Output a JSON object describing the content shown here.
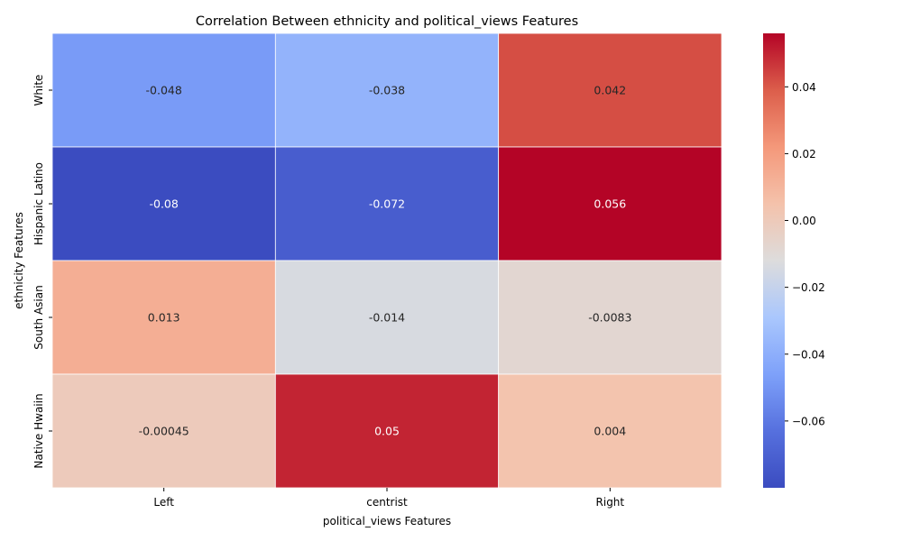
{
  "chart_data": {
    "type": "heatmap",
    "title": "Correlation Between ethnicity and political_views Features",
    "xlabel": "political_views Features",
    "ylabel": "ethnicity Features",
    "x_categories": [
      "Left",
      "centrist",
      "Right"
    ],
    "y_categories": [
      "White",
      "Hispanic Latino",
      "South Asian",
      "Native Hwaiin"
    ],
    "values": [
      [
        -0.048,
        -0.038,
        0.042
      ],
      [
        -0.08,
        -0.072,
        0.056
      ],
      [
        0.013,
        -0.014,
        -0.0083
      ],
      [
        -0.00045,
        0.05,
        0.004
      ]
    ],
    "value_labels": [
      [
        "-0.048",
        "-0.038",
        "0.042"
      ],
      [
        "-0.08",
        "-0.072",
        "0.056"
      ],
      [
        "0.013",
        "-0.014",
        "-0.0083"
      ],
      [
        "-0.00045",
        "0.05",
        "0.004"
      ]
    ],
    "colormap": "coolwarm",
    "color_range": [
      -0.08,
      0.056
    ],
    "colorbar_ticks": [
      -0.06,
      -0.04,
      -0.02,
      0.0,
      0.02,
      0.04
    ],
    "colorbar_tick_labels": [
      "−0.06",
      "−0.04",
      "−0.02",
      "0.00",
      "0.02",
      "0.04"
    ],
    "grid": false,
    "cell_borders": "white"
  }
}
